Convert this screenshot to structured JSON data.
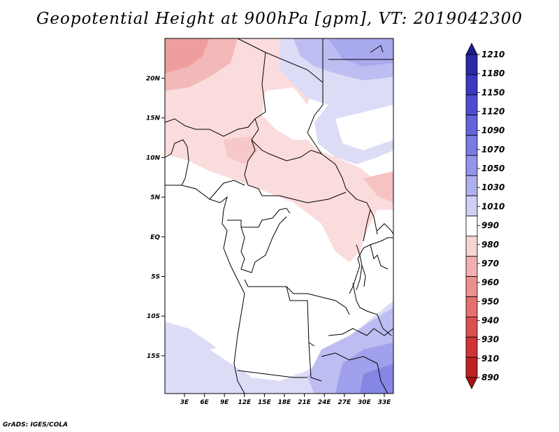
{
  "title": "Geopotential Height at 900hPa [gpm], VT: 2019042300",
  "credit": "GrADS: IGES/COLA",
  "map": {
    "lat_labels": [
      "20N",
      "15N",
      "10N",
      "5N",
      "EQ",
      "5S",
      "10S",
      "15S"
    ],
    "lon_labels": [
      "3E",
      "6E",
      "9E",
      "12E",
      "15E",
      "18E",
      "21E",
      "24E",
      "27E",
      "30E",
      "33E"
    ]
  },
  "colorbar": {
    "labels": [
      "1210",
      "1180",
      "1150",
      "1120",
      "1090",
      "1070",
      "1050",
      "1030",
      "1010",
      "990",
      "980",
      "970",
      "960",
      "950",
      "940",
      "930",
      "910",
      "890"
    ],
    "colors": [
      "#1e1e8c",
      "#2b2ba8",
      "#3a3ac0",
      "#4d4dd0",
      "#6363dc",
      "#7a7ae4",
      "#9494ea",
      "#afafee",
      "#cfcff5",
      "#ffffff",
      "#f9d4d4",
      "#f2b0b0",
      "#ec9090",
      "#e47070",
      "#dc5050",
      "#d03434",
      "#be2222",
      "#a81414"
    ]
  }
}
